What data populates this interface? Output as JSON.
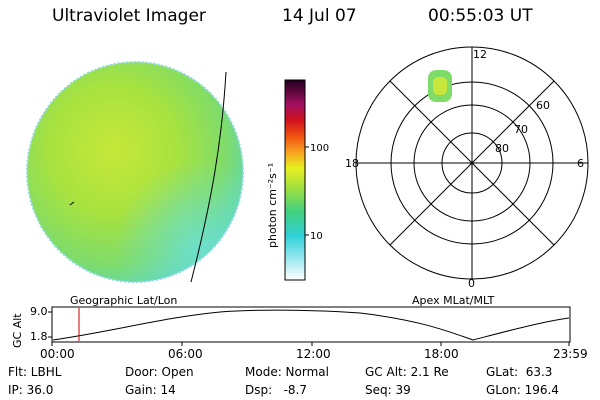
{
  "header": {
    "title": "Ultraviolet Imager",
    "date": "14 Jul 07",
    "time": "00:55:03 UT"
  },
  "colorbar": {
    "label": "photon cm⁻²s⁻¹",
    "ticks": [
      "100",
      "10"
    ]
  },
  "polar": {
    "mlt_labels": {
      "top": "12",
      "left": "18",
      "right": "6",
      "bottom": "0"
    },
    "lat_labels": [
      "60",
      "70",
      "80"
    ]
  },
  "frames": {
    "left": "Geographic Lat/Lon",
    "right": "Apex MLat/MLT"
  },
  "altitude": {
    "axis_label": "GC Alt",
    "ticks": [
      "9.0",
      "1.8"
    ],
    "time_ticks": [
      "00:00",
      "06:00",
      "12:00",
      "18:00",
      "23:59"
    ]
  },
  "info": {
    "flt": "Flt: LBHL",
    "ip": "IP: 36.0",
    "door": "Door: Open",
    "gain": "Gain: 14",
    "mode": "Mode: Normal",
    "dsp": "Dsp:   -8.7",
    "gcalt": "GC Alt: 2.1 Re",
    "seq": "Seq: 39",
    "glat": "GLat:  63.3",
    "glon": "GLon: 196.4"
  }
}
